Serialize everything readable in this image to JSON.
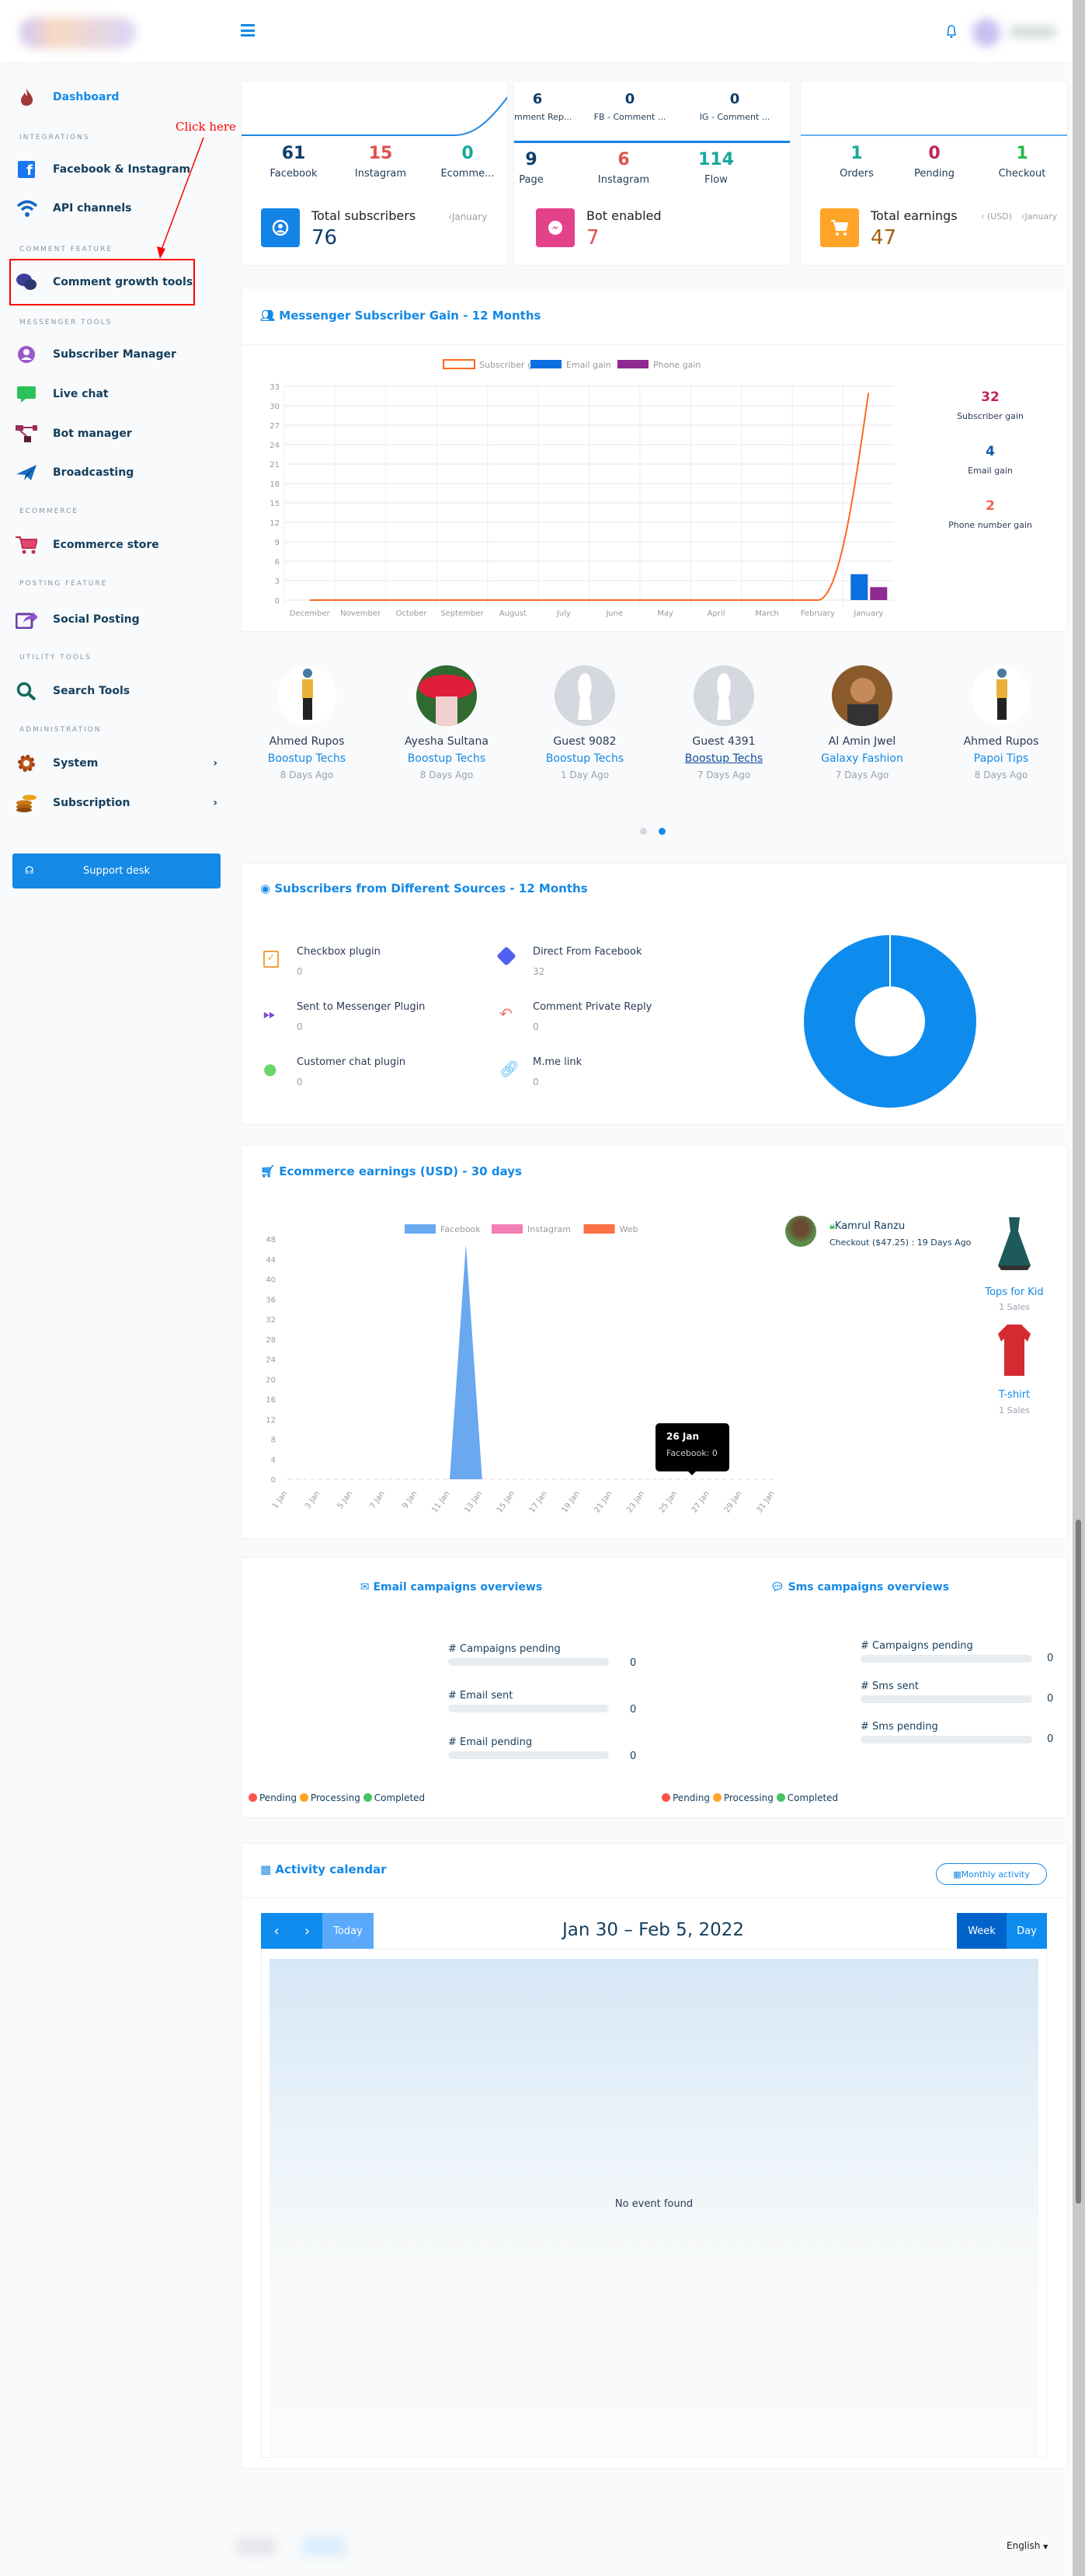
{
  "header": {
    "menu_icon": "hamburger-icon",
    "bell_icon": "bell-icon"
  },
  "sidebar": {
    "dashboard": "Dashboard",
    "sections": {
      "integrations": "INTEGRATIONS",
      "comment": "COMMENT FEATURE",
      "messenger": "MESSENGER TOOLS",
      "ecommerce": "ECOMMERCE",
      "posting": "POSTING FEATURE",
      "utility": "UTILITY TOOLS",
      "admin": "ADMINISTRATION"
    },
    "items": {
      "facebook": "Facebook & Instagram",
      "api": "API channels",
      "comment_growth": "Comment growth tools",
      "subscriber_manager": "Subscriber Manager",
      "live_chat": "Live chat",
      "bot_manager": "Bot manager",
      "broadcasting": "Broadcasting",
      "ecommerce_store": "Ecommerce store",
      "social_posting": "Social Posting",
      "search_tools": "Search Tools",
      "system": "System",
      "subscription": "Subscription"
    },
    "support": "Support desk"
  },
  "annotation": {
    "text": "Click here",
    "color": "#ff0000"
  },
  "cards": {
    "subscribers": {
      "facebook": "61",
      "facebook_label": "Facebook",
      "instagram": "15",
      "instagram_label": "Instagram",
      "ecommerce": "0",
      "ecommerce_label": "Ecomme...",
      "title": "Total subscribers",
      "period": "January",
      "total": "76"
    },
    "bot": {
      "c1": "6",
      "c1_label": "Comment Rep...",
      "c2": "0",
      "c2_label": "FB - Comment ...",
      "c3": "0",
      "c3_label": "IG - Comment ...",
      "page": "9",
      "page_label": "Page",
      "instagram": "6",
      "instagram_label": "Instagram",
      "flow": "114",
      "flow_label": "Flow",
      "title": "Bot enabled",
      "total": "7"
    },
    "earnings": {
      "orders": "1",
      "orders_label": "Orders",
      "pending": "0",
      "pending_label": "Pending",
      "checkout": "1",
      "checkout_label": "Checkout",
      "title": "Total earnings",
      "currency": "(USD)",
      "period": "January",
      "total": "47"
    }
  },
  "messenger_gain": {
    "title": "Messenger Subscriber Gain - 12 Months",
    "stats": [
      {
        "value": "32",
        "label": "Subscriber gain",
        "color": "#c0245a"
      },
      {
        "value": "4",
        "label": "Email gain",
        "color": "#0f5aa8"
      },
      {
        "value": "2",
        "label": "Phone number gain",
        "color": "#f0644d"
      }
    ]
  },
  "recent_subscribers": [
    {
      "name": "Ahmed Rupos",
      "page": "Boostup Techs",
      "time": "8 Days Ago"
    },
    {
      "name": "Ayesha Sultana",
      "page": "Boostup Techs",
      "time": "8 Days Ago"
    },
    {
      "name": "Guest 9082",
      "page": "Boostup Techs",
      "time": "1 Day Ago"
    },
    {
      "name": "Guest 4391",
      "page": "Boostup Techs",
      "time": "7 Days Ago"
    },
    {
      "name": "Al Amin Jwel",
      "page": "Galaxy Fashion",
      "time": "7 Days Ago"
    },
    {
      "name": "Ahmed Rupos",
      "page": "Papoi Tips",
      "time": "8 Days Ago"
    }
  ],
  "sources": {
    "title": "Subscribers from Different Sources - 12 Months",
    "items": [
      {
        "label": "Checkbox plugin",
        "value": "0",
        "icon": "checkbox-icon"
      },
      {
        "label": "Direct From Facebook",
        "value": "32",
        "icon": "direction-icon"
      },
      {
        "label": "Sent to Messenger Plugin",
        "value": "0",
        "icon": "fast-forward-icon"
      },
      {
        "label": "Comment Private Reply",
        "value": "0",
        "icon": "reply-all-icon"
      },
      {
        "label": "Customer chat plugin",
        "value": "0",
        "icon": "wechat-icon"
      },
      {
        "label": "M.me link",
        "value": "0",
        "icon": "link-icon"
      }
    ]
  },
  "ecommerce": {
    "title": "Ecommerce earnings (USD) - 30 days",
    "tooltip": {
      "title": "26 Jan",
      "body": "Facebook: 0"
    },
    "buyer": {
      "name": "Kamrul Ranzu",
      "detail": "Checkout ($47.25) : 19 Days Ago"
    },
    "products": [
      {
        "name": "Tops for Kid",
        "sales": "1 Sales"
      },
      {
        "name": "T-shirt",
        "sales": "1 Sales"
      }
    ]
  },
  "campaigns": {
    "email": {
      "title": "Email campaigns overviews",
      "rows": [
        {
          "label": "# Campaigns pending",
          "value": "0"
        },
        {
          "label": "# Email sent",
          "value": "0"
        },
        {
          "label": "# Email pending",
          "value": "0"
        }
      ]
    },
    "sms": {
      "title": "Sms campaigns overviews",
      "rows": [
        {
          "label": "# Campaigns pending",
          "value": "0"
        },
        {
          "label": "# Sms sent",
          "value": "0"
        },
        {
          "label": "# Sms pending",
          "value": "0"
        }
      ]
    },
    "legend": [
      {
        "label": "Pending",
        "color": "#fc544b"
      },
      {
        "label": "Processing",
        "color": "#ffa426"
      },
      {
        "label": "Completed",
        "color": "#47c363"
      }
    ]
  },
  "calendar": {
    "title": "Activity calendar",
    "monthly": "Monthly activity",
    "prev": "‹",
    "next": "›",
    "today": "Today",
    "range": "Jan 30 – Feb 5, 2022",
    "week": "Week",
    "day": "Day",
    "empty": "No event found"
  },
  "footer": {
    "language": "English"
  },
  "chart_data": [
    {
      "type": "line",
      "title": "Messenger Subscriber Gain - 12 Months",
      "categories": [
        "December",
        "November",
        "October",
        "September",
        "August",
        "July",
        "June",
        "May",
        "April",
        "March",
        "February",
        "January"
      ],
      "series": [
        {
          "name": "Subscriber gain",
          "kind": "line",
          "color": "#fd6820",
          "values": [
            0,
            0,
            0,
            0,
            0,
            0,
            0,
            0,
            0,
            0,
            0,
            32
          ]
        },
        {
          "name": "Email gain",
          "kind": "bar",
          "color": "#0b6fe0",
          "values": [
            0,
            0,
            0,
            0,
            0,
            0,
            0,
            0,
            0,
            0,
            0,
            4
          ]
        },
        {
          "name": "Phone gain",
          "kind": "bar",
          "color": "#8e2a91",
          "values": [
            0,
            0,
            0,
            0,
            0,
            0,
            0,
            0,
            0,
            0,
            0,
            2
          ]
        }
      ],
      "ylim": [
        0,
        33
      ],
      "yticks": [
        0,
        3,
        6,
        9,
        12,
        15,
        18,
        21,
        24,
        27,
        30,
        33
      ],
      "legend": "top",
      "grid": true
    },
    {
      "type": "pie",
      "title": "Subscribers from Different Sources - 12 Months",
      "donut": true,
      "labels": [
        "Checkbox plugin",
        "Direct From Facebook",
        "Sent to Messenger Plugin",
        "Comment Private Reply",
        "Customer chat plugin",
        "M.me link"
      ],
      "values": [
        0,
        32,
        0,
        0,
        0,
        0
      ],
      "color": "#0e8cee"
    },
    {
      "type": "area",
      "title": "Ecommerce earnings (USD) - 30 days",
      "x": [
        "1 Jan",
        "2 Jan",
        "3 Jan",
        "4 Jan",
        "5 Jan",
        "6 Jan",
        "7 Jan",
        "8 Jan",
        "9 Jan",
        "10 Jan",
        "11 Jan",
        "12 Jan",
        "13 Jan",
        "14 Jan",
        "15 Jan",
        "16 Jan",
        "17 Jan",
        "18 Jan",
        "19 Jan",
        "20 Jan",
        "21 Jan",
        "22 Jan",
        "23 Jan",
        "24 Jan",
        "25 Jan",
        "26 Jan",
        "27 Jan",
        "28 Jan",
        "29 Jan",
        "30 Jan",
        "31 Jan"
      ],
      "xticks": [
        "1 Jan",
        "3 Jan",
        "5 Jan",
        "7 Jan",
        "9 Jan",
        "11 Jan",
        "13 Jan",
        "15 Jan",
        "17 Jan",
        "19 Jan",
        "21 Jan",
        "23 Jan",
        "25 Jan",
        "27 Jan",
        "29 Jan",
        "31 Jan"
      ],
      "series": [
        {
          "name": "Facebook",
          "color": "#6aa8f0",
          "values": [
            0,
            0,
            0,
            0,
            0,
            0,
            0,
            0,
            0,
            0,
            0,
            47,
            0,
            0,
            0,
            0,
            0,
            0,
            0,
            0,
            0,
            0,
            0,
            0,
            0,
            0,
            0,
            0,
            0,
            0,
            0
          ]
        },
        {
          "name": "Instagram",
          "color": "#f47fb6",
          "values": [
            0,
            0,
            0,
            0,
            0,
            0,
            0,
            0,
            0,
            0,
            0,
            0,
            0,
            0,
            0,
            0,
            0,
            0,
            0,
            0,
            0,
            0,
            0,
            0,
            0,
            0,
            0,
            0,
            0,
            0,
            0
          ]
        },
        {
          "name": "Web",
          "color": "#fd7045",
          "values": [
            0,
            0,
            0,
            0,
            0,
            0,
            0,
            0,
            0,
            0,
            0,
            0,
            0,
            0,
            0,
            0,
            0,
            0,
            0,
            0,
            0,
            0,
            0,
            0,
            0,
            0,
            0,
            0,
            0,
            0,
            0
          ]
        }
      ],
      "ylim": [
        0,
        48
      ],
      "yticks": [
        0,
        4,
        8,
        12,
        16,
        20,
        24,
        28,
        32,
        36,
        40,
        44,
        48
      ],
      "legend": "top"
    }
  ]
}
